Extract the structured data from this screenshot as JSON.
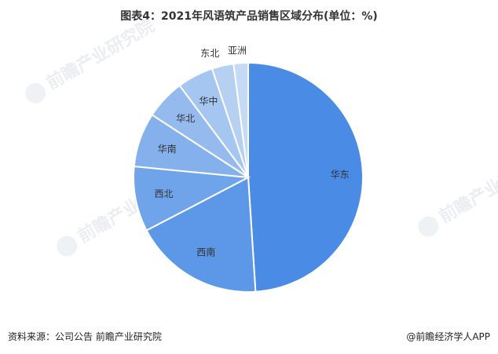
{
  "title": "图表4：2021年风语筑产品销售区域分布(单位：%)",
  "source": "资料来源：公司公告 前瞻产业研究院",
  "brand": "@前瞻经济学人APP",
  "watermark": "前瞻产业研究院",
  "chart_data": {
    "type": "pie",
    "title": "图表4：2021年风语筑产品销售区域分布(单位：%)",
    "labels": [
      "华东",
      "西南",
      "西北",
      "华南",
      "华北",
      "华中",
      "东北",
      "亚洲"
    ],
    "values": [
      48,
      18,
      9,
      7.5,
      5.5,
      5,
      3,
      2
    ],
    "colors": [
      "#4a8be5",
      "#5d97e7",
      "#6fa3ea",
      "#84b0ec",
      "#95bbee",
      "#a5c6f1",
      "#b6d0f2",
      "#c4daf5"
    ]
  }
}
